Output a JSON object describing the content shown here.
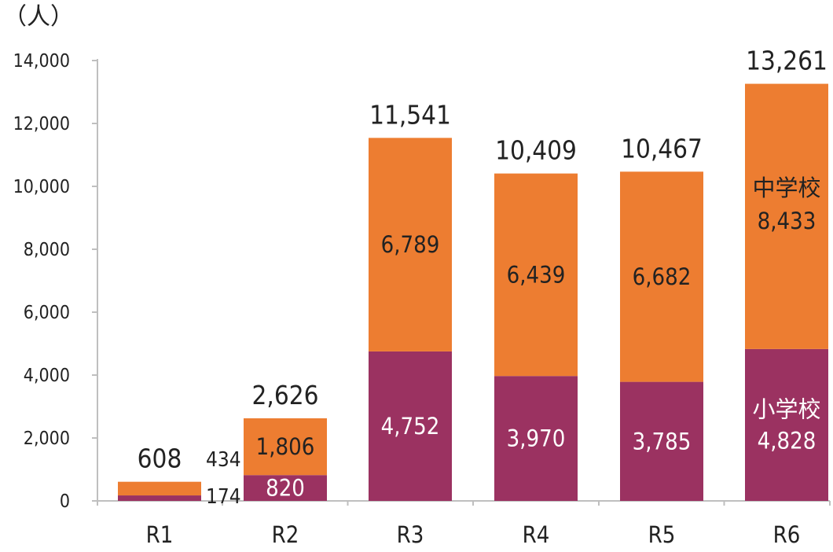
{
  "chart_data": {
    "type": "bar",
    "stacked": true,
    "unit_label": "（人）",
    "categories": [
      "R1",
      "R2",
      "R3",
      "R4",
      "R5",
      "R6"
    ],
    "series": [
      {
        "name": "小学校",
        "color": "#9b3261",
        "label_color": "#ffffff",
        "values": [
          174,
          820,
          4752,
          3970,
          3785,
          4828
        ],
        "labels": [
          "174",
          "820",
          "4,752",
          "3,970",
          "3,785",
          "4,828"
        ]
      },
      {
        "name": "中学校",
        "color": "#ed7d31",
        "label_color": "#222222",
        "values": [
          434,
          1806,
          6789,
          6439,
          6682,
          8433
        ],
        "labels": [
          "434",
          "1,806",
          "6,789",
          "6,439",
          "6,682",
          "8,433"
        ]
      }
    ],
    "totals": [
      608,
      2626,
      11541,
      10409,
      10467,
      13261
    ],
    "total_labels": [
      "608",
      "2,626",
      "11,541",
      "10,409",
      "10,467",
      "13,261"
    ],
    "y_ticks": [
      0,
      2000,
      4000,
      6000,
      8000,
      10000,
      12000,
      14000
    ],
    "y_tick_labels": [
      "0",
      "2,000",
      "4,000",
      "6,000",
      "8,000",
      "10,000",
      "12,000",
      "14,000"
    ],
    "ylim": [
      0,
      14000
    ],
    "series_name_annotation_category": "R6",
    "small_values_labeled_outside_category": "R1",
    "grid": false,
    "legend": "none",
    "axis_color": "#bfbfbf"
  }
}
